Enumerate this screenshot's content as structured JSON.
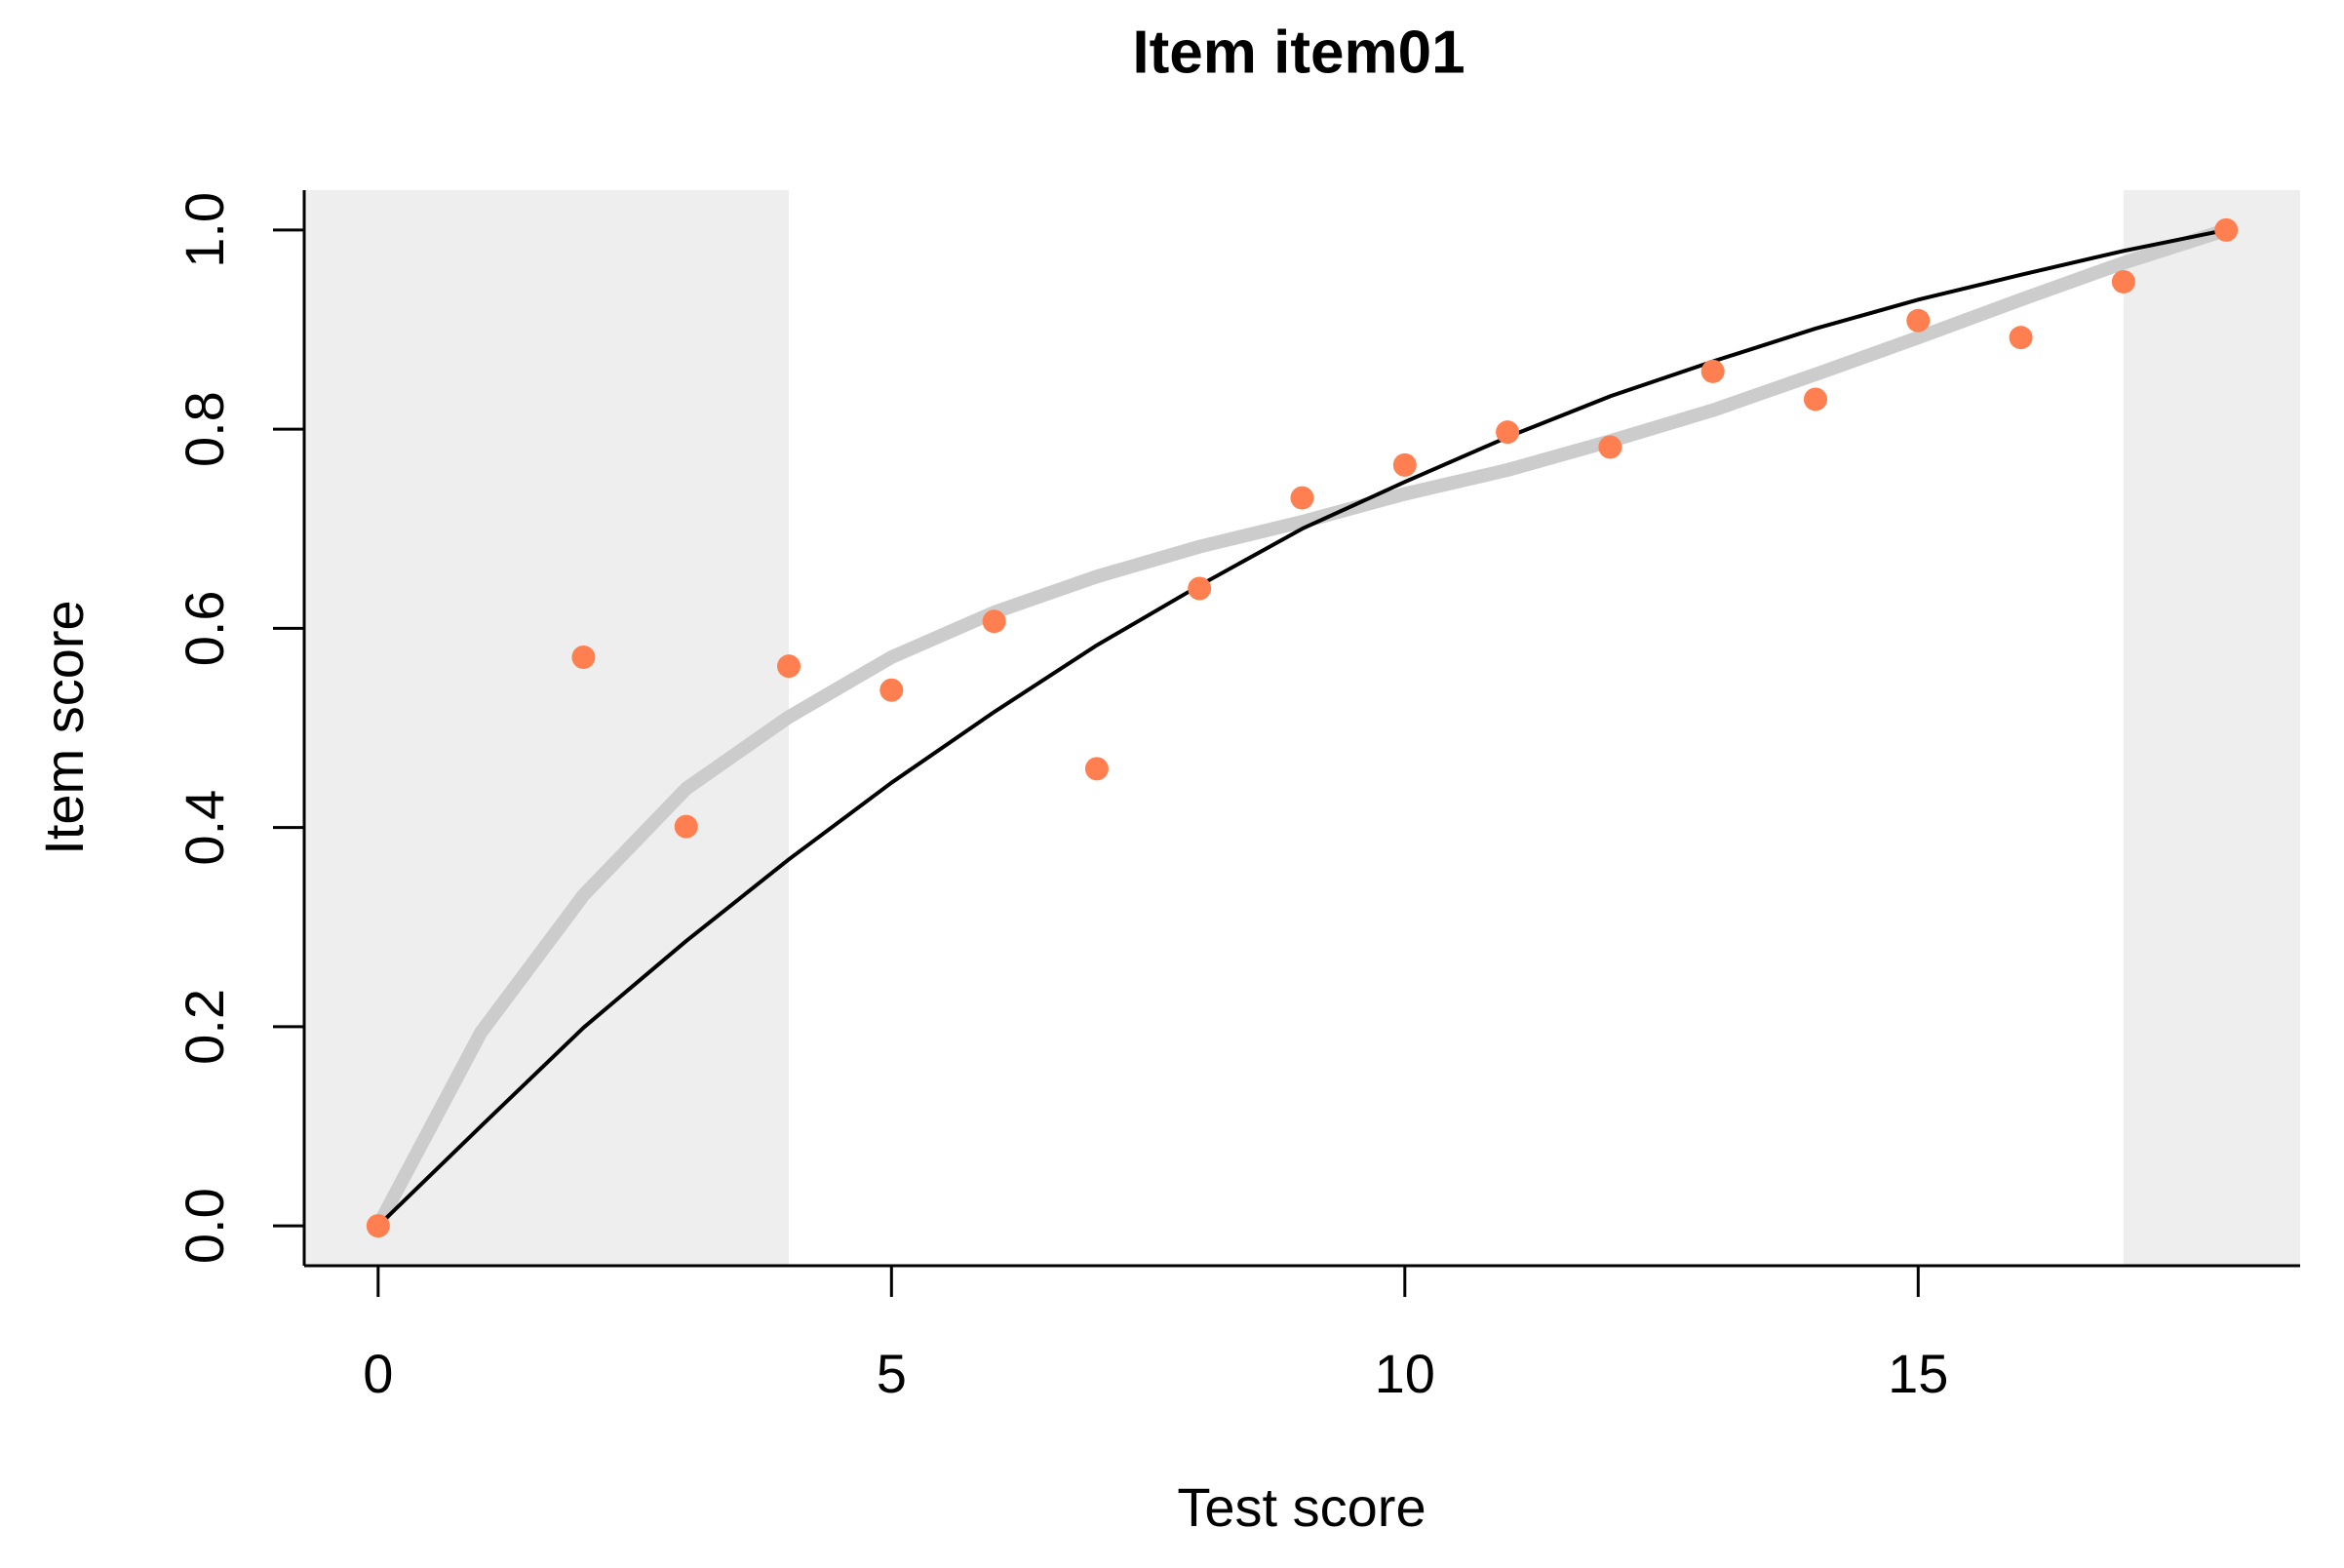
{
  "chart_data": {
    "type": "scatter",
    "title": "Item item01",
    "xlabel": "Test score",
    "ylabel": "Item score",
    "x": [
      0,
      1,
      2,
      3,
      4,
      5,
      6,
      7,
      8,
      9,
      10,
      11,
      12,
      13,
      14,
      15,
      16,
      17,
      18
    ],
    "series": [
      {
        "kind": "smooth",
        "color": "#cccccc",
        "values": [
          0,
          0.194,
          0.332,
          0.439,
          0.511,
          0.571,
          0.616,
          0.652,
          0.682,
          0.707,
          0.735,
          0.759,
          0.788,
          0.819,
          0.855,
          0.892,
          0.93,
          0.967,
          1
        ]
      },
      {
        "kind": "line",
        "color": "#000000",
        "values": [
          0,
          0.1,
          0.199,
          0.286,
          0.368,
          0.445,
          0.516,
          0.583,
          0.643,
          0.7,
          0.747,
          0.792,
          0.833,
          0.868,
          0.901,
          0.93,
          0.955,
          0.979,
          1
        ]
      },
      {
        "kind": "points",
        "color": "#ff7f50",
        "values": [
          0,
          null,
          0.571,
          0.401,
          0.562,
          0.538,
          0.607,
          0.459,
          0.64,
          0.731,
          0.764,
          0.797,
          0.782,
          0.858,
          0.83,
          0.909,
          0.892,
          0.948,
          1
        ]
      }
    ],
    "shaded_ranges": [
      [
        -0.72,
        4
      ],
      [
        17,
        18.72
      ]
    ],
    "shade_color": "#eeeeee",
    "xlim": [
      -0.72,
      18.72
    ],
    "xticks": [
      0,
      5,
      10,
      15
    ],
    "ylim": [
      -0.04,
      1.04
    ],
    "yticks": [
      {
        "value": 0,
        "label": "0.0"
      },
      0.2,
      0.4,
      0.6,
      0.8,
      {
        "value": 1,
        "label": "1.0"
      }
    ]
  }
}
